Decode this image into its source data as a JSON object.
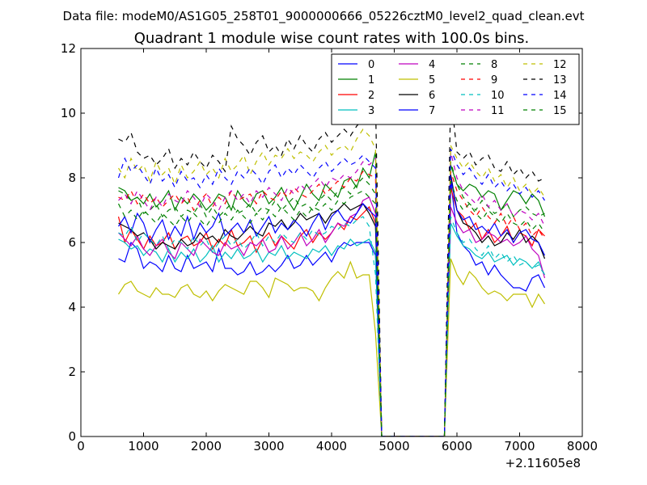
{
  "chart_data": {
    "type": "line",
    "supertitle": "Data file: modeM0/AS1G05_258T01_9000000666_05226cztM0_level2_quad_clean.evt",
    "title": "Quadrant 1 module wise count rates with 100.0s bins.",
    "xlabel": "",
    "ylabel": "",
    "x_offset_label": "+2.11605e8",
    "xlim": [
      0,
      8000
    ],
    "ylim": [
      0,
      12
    ],
    "xticks": [
      0,
      1000,
      2000,
      3000,
      4000,
      5000,
      6000,
      7000,
      8000
    ],
    "yticks": [
      0,
      2,
      4,
      6,
      8,
      10,
      12
    ],
    "grid": false,
    "legend": {
      "position": "top-right",
      "columns": 4
    },
    "gap": {
      "start": 4800,
      "end": 5800
    },
    "x_segment_1": {
      "start": 600,
      "end": 4800,
      "step": 100
    },
    "x_segment_2": {
      "start": 5800,
      "end": 7400,
      "step": 100
    },
    "series": [
      {
        "name": "0",
        "color": "#0000ff",
        "dash": "solid",
        "values_segment_1": [
          5.5,
          5.4,
          6.0,
          5.8,
          5.2,
          5.4,
          5.3,
          5.1,
          5.6,
          5.2,
          5.1,
          5.6,
          5.2,
          5.3,
          5.4,
          5.1,
          5.8,
          5.2,
          5.2,
          5.0,
          5.1,
          5.4,
          5.0,
          5.1,
          5.3,
          5.1,
          5.3,
          5.6,
          5.2,
          5.3,
          5.6,
          5.3,
          5.5,
          5.7,
          5.4,
          5.8,
          6.0,
          5.9,
          6.0,
          6.0,
          6.0,
          5.6,
          0.0
        ],
        "values_segment_2": [
          0.0,
          7.9,
          6.3,
          5.9,
          5.7,
          5.3,
          5.4,
          5.0,
          5.3,
          5.0,
          4.8,
          4.6,
          4.6,
          4.5,
          4.9,
          5.0,
          4.6
        ]
      },
      {
        "name": "1",
        "color": "#008000",
        "dash": "solid",
        "values_segment_1": [
          7.7,
          7.6,
          7.3,
          7.4,
          7.2,
          7.5,
          7.1,
          7.3,
          7.6,
          7.0,
          7.4,
          7.2,
          7.5,
          7.3,
          7.0,
          7.2,
          7.5,
          7.4,
          7.0,
          7.6,
          7.3,
          7.1,
          7.5,
          7.6,
          7.2,
          7.4,
          7.7,
          7.3,
          7.0,
          7.4,
          7.8,
          7.5,
          7.3,
          7.8,
          7.6,
          7.4,
          7.9,
          8.0,
          7.7,
          8.3,
          8.0,
          8.8,
          0.0
        ],
        "values_segment_2": [
          0.0,
          8.4,
          7.8,
          7.6,
          7.8,
          7.7,
          7.4,
          7.6,
          7.5,
          7.0,
          7.3,
          7.6,
          7.5,
          7.2,
          7.5,
          7.3,
          6.8
        ]
      },
      {
        "name": "2",
        "color": "#ff0000",
        "dash": "solid",
        "values_segment_1": [
          6.8,
          6.0,
          6.4,
          6.1,
          5.8,
          6.2,
          5.9,
          6.0,
          6.3,
          5.8,
          6.1,
          6.2,
          5.9,
          6.0,
          6.3,
          5.8,
          6.1,
          5.9,
          6.4,
          5.9,
          6.0,
          6.2,
          5.7,
          6.1,
          6.3,
          5.9,
          6.2,
          6.0,
          5.8,
          6.2,
          6.4,
          6.0,
          6.3,
          6.1,
          6.3,
          6.6,
          6.4,
          6.8,
          6.7,
          6.9,
          7.1,
          6.6,
          0.0
        ],
        "values_segment_2": [
          0.0,
          7.7,
          7.0,
          6.8,
          6.4,
          6.6,
          6.1,
          6.4,
          6.0,
          6.2,
          6.5,
          6.0,
          6.3,
          6.2,
          5.9,
          6.4,
          6.2
        ]
      },
      {
        "name": "3",
        "color": "#00bfbf",
        "dash": "solid",
        "values_segment_1": [
          6.1,
          6.0,
          5.8,
          5.9,
          5.6,
          5.8,
          5.7,
          5.4,
          5.8,
          5.4,
          5.7,
          5.5,
          5.8,
          5.4,
          5.6,
          5.9,
          5.4,
          5.7,
          5.5,
          5.8,
          5.5,
          5.6,
          5.8,
          5.4,
          5.7,
          5.6,
          5.9,
          5.5,
          5.7,
          5.6,
          5.5,
          5.8,
          5.7,
          5.9,
          5.6,
          5.9,
          5.8,
          6.1,
          5.9,
          6.0,
          6.1,
          5.7,
          0.0
        ],
        "values_segment_2": [
          0.0,
          6.6,
          6.2,
          5.9,
          5.8,
          5.6,
          5.5,
          5.7,
          5.4,
          5.5,
          5.6,
          5.3,
          5.5,
          5.4,
          5.2,
          5.4,
          5.0
        ]
      },
      {
        "name": "4",
        "color": "#bf00bf",
        "dash": "solid",
        "values_segment_1": [
          6.3,
          6.1,
          5.9,
          6.2,
          5.8,
          5.6,
          5.9,
          6.1,
          5.7,
          5.5,
          6.0,
          5.8,
          5.6,
          6.1,
          5.9,
          5.7,
          5.6,
          6.0,
          5.8,
          5.9,
          5.6,
          6.0,
          5.9,
          6.1,
          5.7,
          5.8,
          6.2,
          5.8,
          6.0,
          6.3,
          5.9,
          6.1,
          6.4,
          6.0,
          6.3,
          6.6,
          6.5,
          6.8,
          6.9,
          7.3,
          7.4,
          6.9,
          0.0
        ],
        "values_segment_2": [
          0.0,
          7.1,
          6.6,
          6.3,
          6.4,
          6.0,
          6.1,
          6.3,
          6.2,
          6.0,
          6.1,
          5.9,
          6.0,
          6.2,
          5.8,
          5.6,
          4.9
        ]
      },
      {
        "name": "5",
        "color": "#bfbf00",
        "dash": "solid",
        "values_segment_1": [
          4.4,
          4.7,
          4.8,
          4.5,
          4.4,
          4.3,
          4.6,
          4.4,
          4.4,
          4.3,
          4.6,
          4.7,
          4.4,
          4.3,
          4.5,
          4.2,
          4.5,
          4.7,
          4.6,
          4.5,
          4.4,
          4.8,
          4.8,
          4.6,
          4.3,
          4.9,
          4.8,
          4.7,
          4.5,
          4.6,
          4.6,
          4.5,
          4.2,
          4.6,
          4.9,
          5.1,
          4.9,
          5.4,
          4.9,
          5.0,
          5.0,
          3.2,
          0.0
        ],
        "values_segment_2": [
          0.0,
          5.5,
          5.0,
          4.7,
          5.1,
          4.9,
          4.6,
          4.4,
          4.5,
          4.4,
          4.2,
          4.4,
          4.4,
          4.4,
          4.0,
          4.4,
          4.1
        ]
      },
      {
        "name": "6",
        "color": "#000000",
        "dash": "solid",
        "values_segment_1": [
          6.6,
          6.5,
          6.4,
          6.2,
          6.3,
          6.1,
          5.8,
          6.0,
          5.9,
          5.8,
          6.1,
          5.9,
          6.0,
          6.3,
          6.1,
          6.2,
          6.0,
          6.4,
          6.2,
          6.1,
          6.3,
          6.5,
          6.3,
          6.2,
          6.6,
          6.5,
          6.7,
          6.4,
          6.6,
          6.9,
          6.7,
          6.8,
          6.9,
          6.6,
          6.9,
          7.0,
          7.2,
          7.0,
          7.1,
          7.2,
          6.9,
          6.5,
          0.0
        ],
        "values_segment_2": [
          0.0,
          8.1,
          7.0,
          6.6,
          6.5,
          6.3,
          6.0,
          6.2,
          5.9,
          6.0,
          6.3,
          6.1,
          6.4,
          6.0,
          6.2,
          6.0,
          5.5
        ]
      },
      {
        "name": "7",
        "color": "#0000ff",
        "dash": "solid",
        "values_segment_1": [
          6.5,
          6.8,
          6.3,
          6.9,
          6.6,
          6.0,
          6.4,
          6.7,
          6.1,
          6.5,
          6.2,
          6.8,
          6.1,
          6.6,
          6.3,
          6.5,
          6.9,
          6.2,
          6.4,
          6.6,
          6.3,
          6.7,
          6.2,
          6.5,
          6.8,
          6.3,
          6.6,
          6.4,
          6.7,
          6.5,
          6.2,
          6.6,
          6.9,
          6.4,
          6.8,
          7.0,
          6.7,
          6.6,
          6.9,
          7.2,
          7.0,
          6.8,
          0.0
        ],
        "values_segment_2": [
          0.0,
          8.0,
          7.0,
          6.7,
          6.8,
          6.4,
          6.5,
          6.3,
          6.6,
          6.2,
          6.4,
          6.0,
          6.3,
          6.4,
          6.1,
          6.0,
          5.6
        ]
      },
      {
        "name": "8",
        "color": "#008000",
        "dash": "dashed",
        "values_segment_1": [
          7.6,
          7.5,
          7.3,
          7.4,
          6.9,
          7.0,
          7.2,
          6.8,
          7.0,
          7.1,
          6.8,
          7.0,
          6.9,
          7.2,
          6.8,
          7.1,
          6.8,
          7.0,
          7.2,
          6.9,
          7.0,
          7.2,
          6.9,
          7.1,
          7.0,
          7.3,
          7.0,
          7.2,
          7.4,
          7.1,
          7.2,
          7.0,
          7.3,
          7.5,
          7.3,
          7.6,
          7.7,
          7.5,
          7.8,
          8.0,
          7.8,
          7.5,
          0.0
        ],
        "values_segment_2": [
          0.0,
          8.5,
          7.8,
          7.4,
          7.2,
          7.0,
          7.3,
          7.1,
          6.9,
          7.0,
          7.2,
          6.8,
          7.0,
          7.1,
          6.9,
          6.8,
          6.9
        ]
      },
      {
        "name": "9",
        "color": "#ff0000",
        "dash": "dashed",
        "values_segment_1": [
          7.4,
          7.3,
          7.6,
          7.2,
          7.5,
          7.2,
          7.4,
          7.1,
          7.3,
          7.5,
          7.2,
          7.4,
          7.0,
          7.3,
          7.5,
          7.1,
          7.4,
          7.2,
          7.6,
          7.3,
          7.4,
          7.5,
          7.2,
          7.6,
          7.4,
          7.3,
          7.6,
          7.4,
          7.7,
          7.5,
          7.4,
          7.6,
          7.8,
          7.5,
          7.7,
          7.9,
          7.7,
          8.0,
          7.9,
          8.2,
          8.1,
          8.0,
          0.0
        ],
        "values_segment_2": [
          0.0,
          8.2,
          7.6,
          7.3,
          7.0,
          6.8,
          7.1,
          6.8,
          6.6,
          6.9,
          6.5,
          6.8,
          6.4,
          6.6,
          6.2,
          6.4,
          6.1
        ]
      },
      {
        "name": "10",
        "color": "#00bfbf",
        "dash": "dashed",
        "values_segment_1": [
          6.3,
          6.2,
          6.5,
          6.0,
          6.3,
          6.1,
          5.9,
          6.2,
          5.8,
          6.1,
          6.0,
          5.8,
          6.2,
          5.9,
          6.1,
          5.7,
          6.0,
          6.2,
          5.9,
          6.1,
          5.8,
          6.0,
          6.3,
          5.9,
          6.2,
          6.0,
          6.3,
          6.1,
          6.0,
          6.3,
          6.1,
          6.4,
          6.2,
          6.3,
          6.5,
          6.4,
          6.6,
          6.5,
          6.7,
          6.8,
          6.5,
          5.0,
          0.0
        ],
        "values_segment_2": [
          0.0,
          6.8,
          6.3,
          6.0,
          6.1,
          5.8,
          5.6,
          5.9,
          5.5,
          5.7,
          5.4,
          5.6,
          5.3,
          5.4,
          5.2,
          5.3,
          5.0
        ]
      },
      {
        "name": "11",
        "color": "#bf00bf",
        "dash": "dashed",
        "values_segment_1": [
          7.3,
          7.5,
          7.2,
          7.6,
          7.3,
          7.0,
          7.4,
          7.1,
          7.5,
          7.3,
          7.2,
          7.6,
          7.4,
          7.1,
          7.5,
          7.3,
          7.0,
          7.4,
          7.6,
          7.3,
          7.5,
          7.2,
          7.6,
          7.4,
          7.7,
          7.5,
          7.3,
          7.7,
          7.5,
          7.8,
          7.6,
          7.8,
          8.0,
          7.7,
          8.0,
          7.9,
          8.1,
          8.0,
          8.2,
          8.5,
          8.4,
          8.6,
          0.0
        ],
        "values_segment_2": [
          0.0,
          8.8,
          8.0,
          7.6,
          7.4,
          7.2,
          7.5,
          7.1,
          7.3,
          7.0,
          7.2,
          6.8,
          7.0,
          6.9,
          6.7,
          6.9,
          6.5
        ]
      },
      {
        "name": "12",
        "color": "#bfbf00",
        "dash": "dashed",
        "values_segment_1": [
          8.3,
          8.0,
          8.6,
          8.2,
          8.4,
          7.9,
          8.5,
          8.1,
          8.3,
          7.8,
          8.4,
          8.0,
          8.2,
          8.5,
          8.1,
          8.3,
          8.0,
          8.6,
          8.2,
          8.4,
          8.7,
          8.1,
          8.5,
          8.8,
          8.4,
          8.7,
          8.6,
          8.9,
          8.6,
          8.8,
          8.7,
          8.5,
          8.8,
          9.0,
          8.7,
          8.9,
          9.0,
          8.8,
          9.2,
          9.5,
          9.3,
          8.9,
          0.0
        ],
        "values_segment_2": [
          0.0,
          9.0,
          8.6,
          8.3,
          8.5,
          8.2,
          8.0,
          8.3,
          7.9,
          8.1,
          7.7,
          8.0,
          7.6,
          7.8,
          7.5,
          7.7,
          7.4
        ]
      },
      {
        "name": "13",
        "color": "#000000",
        "dash": "dashed",
        "values_segment_1": [
          9.2,
          9.1,
          9.4,
          8.8,
          8.6,
          8.7,
          8.4,
          8.6,
          8.9,
          8.3,
          8.6,
          8.4,
          8.8,
          8.5,
          8.3,
          8.7,
          8.5,
          8.2,
          9.6,
          9.2,
          9.0,
          8.7,
          9.1,
          9.3,
          8.8,
          9.0,
          8.7,
          9.2,
          8.9,
          9.3,
          9.0,
          8.8,
          9.2,
          9.4,
          9.1,
          9.3,
          9.5,
          9.3,
          9.6,
          9.8,
          10.0,
          10.4,
          0.0
        ],
        "values_segment_2": [
          0.0,
          10.6,
          8.8,
          8.6,
          8.8,
          8.4,
          8.6,
          8.7,
          8.3,
          8.2,
          8.5,
          8.1,
          8.3,
          8.0,
          8.2,
          7.9,
          8.0
        ]
      },
      {
        "name": "14",
        "color": "#0000ff",
        "dash": "dashed",
        "values_segment_1": [
          8.0,
          8.6,
          8.2,
          8.4,
          8.1,
          7.8,
          8.3,
          7.9,
          8.1,
          7.7,
          8.2,
          7.9,
          8.0,
          7.7,
          8.1,
          7.8,
          8.3,
          8.0,
          7.8,
          8.2,
          8.0,
          8.3,
          8.1,
          7.8,
          8.2,
          8.4,
          8.0,
          8.3,
          8.1,
          8.4,
          8.2,
          8.0,
          8.3,
          8.5,
          8.2,
          8.4,
          8.6,
          8.4,
          8.5,
          8.7,
          8.5,
          8.3,
          0.0
        ],
        "values_segment_2": [
          0.0,
          8.9,
          8.4,
          8.1,
          8.3,
          8.0,
          7.8,
          8.1,
          7.7,
          7.9,
          7.6,
          7.8,
          7.5,
          7.7,
          7.4,
          7.6,
          7.3
        ]
      },
      {
        "name": "15",
        "color": "#008000",
        "dash": "dashed",
        "values_segment_1": [
          7.2,
          6.8,
          7.0,
          6.7,
          7.0,
          6.8,
          6.6,
          6.9,
          6.7,
          6.5,
          6.8,
          6.6,
          6.9,
          6.7,
          6.5,
          6.8,
          6.6,
          6.9,
          6.7,
          7.0,
          6.8,
          6.6,
          6.9,
          6.7,
          7.0,
          6.8,
          7.1,
          6.9,
          6.7,
          7.0,
          6.8,
          7.1,
          7.0,
          7.2,
          7.0,
          7.3,
          7.2,
          7.4,
          7.5,
          7.6,
          7.4,
          7.2,
          0.0
        ],
        "values_segment_2": [
          0.0,
          7.9,
          7.3,
          7.0,
          7.2,
          6.9,
          6.7,
          7.0,
          6.8,
          6.6,
          6.9,
          6.6,
          6.5,
          6.7,
          6.4,
          6.6,
          6.3
        ]
      }
    ]
  }
}
